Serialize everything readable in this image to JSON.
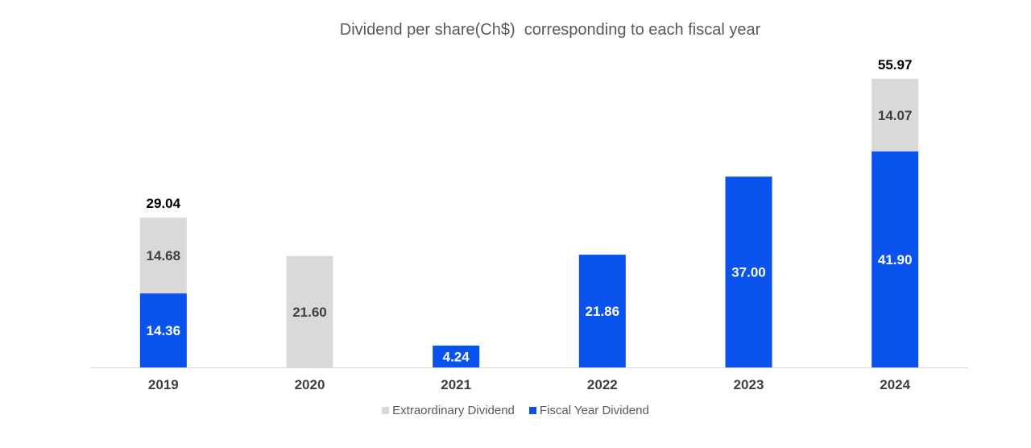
{
  "chart_data": {
    "type": "bar",
    "stacked": true,
    "title": "Dividend per share(Ch$)  corresponding to each fiscal year",
    "categories": [
      "2019",
      "2020",
      "2021",
      "2022",
      "2023",
      "2024"
    ],
    "series": [
      {
        "name": "Fiscal Year Dividend",
        "color": "#0a52ee",
        "label_color": "#ffffff",
        "values": [
          14.36,
          0,
          4.24,
          21.86,
          37.0,
          41.9
        ],
        "labels": [
          "14.36",
          "",
          "4.24",
          "21.86",
          "37.00",
          "41.90"
        ]
      },
      {
        "name": "Extraordinary Dividend",
        "color": "#d9d9d9",
        "label_color": "#404040",
        "values": [
          14.68,
          21.6,
          0,
          0,
          0,
          14.07
        ],
        "labels": [
          "14.68",
          "21.60",
          "",
          "",
          "",
          "14.07"
        ]
      }
    ],
    "totals": [
      "29.04",
      "",
      "",
      "",
      "",
      "55.97"
    ],
    "legend_order": [
      "Extraordinary Dividend",
      "Fiscal Year Dividend"
    ],
    "legend_position": "bottom",
    "grid": false,
    "ylim": [
      0,
      56
    ]
  }
}
